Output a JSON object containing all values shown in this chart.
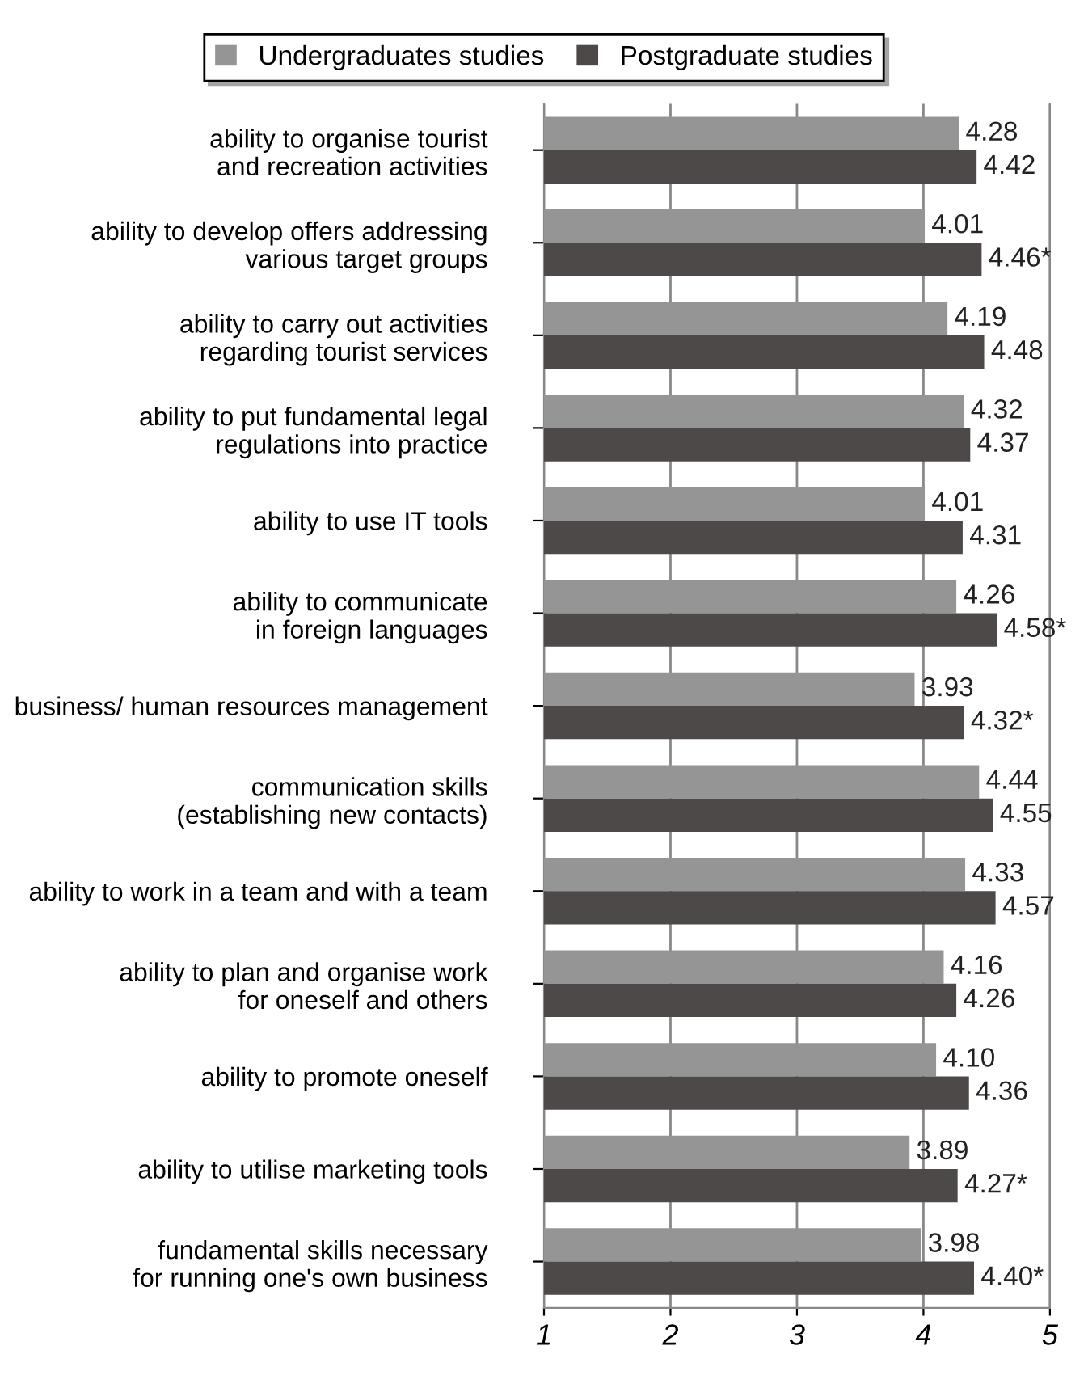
{
  "chart_data": {
    "type": "bar",
    "orientation": "horizontal",
    "categories": [
      "ability to organise tourist\nand recreation activities",
      "ability to develop offers addressing\nvarious target groups",
      "ability to carry out activities\nregarding tourist services",
      "ability to put fundamental legal\nregulations into practice",
      "ability to use IT tools",
      "ability to communicate\nin foreign languages",
      "business/ human resources management",
      "communication skills\n(establishing new contacts)",
      "ability to work in a team and with a team",
      "ability to plan and organise work\nfor oneself and others",
      "ability to promote oneself",
      "ability to utilise marketing tools",
      "fundamental skills necessary\nfor running one's own business"
    ],
    "series": [
      {
        "name": "Undergraduates studies",
        "color": "#969595",
        "values": [
          4.28,
          4.01,
          4.19,
          4.32,
          4.01,
          4.26,
          3.93,
          4.44,
          4.33,
          4.16,
          4.1,
          3.89,
          3.98
        ],
        "value_labels": [
          "4.28",
          "4.01",
          "4.19",
          "4.32",
          "4.01",
          "4.26",
          "3.93",
          "4.44",
          "4.33",
          "4.16",
          "4.10",
          "3.89",
          "3.98"
        ]
      },
      {
        "name": "Postgraduate studies",
        "color": "#4d4948",
        "values": [
          4.42,
          4.46,
          4.48,
          4.37,
          4.31,
          4.58,
          4.32,
          4.55,
          4.57,
          4.26,
          4.36,
          4.27,
          4.4
        ],
        "value_labels": [
          "4.42",
          "4.46*",
          "4.48",
          "4.37",
          "4.31",
          "4.58*",
          "4.32*",
          "4.55",
          "4.57",
          "4.26",
          "4.36",
          "4.27*",
          "4.40*"
        ]
      }
    ],
    "xlim": [
      1,
      5
    ],
    "xticks": [
      1,
      2,
      3,
      4,
      5
    ],
    "grid": "x",
    "legend": "top"
  }
}
